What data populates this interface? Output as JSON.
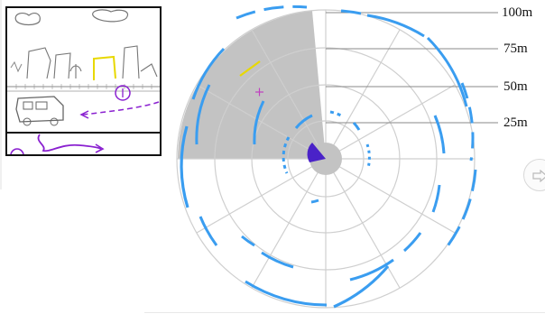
{
  "radar": {
    "distance_labels": [
      "100m",
      "75m",
      "50m",
      "25m"
    ],
    "colors": {
      "arc": "#3a9df0",
      "sector": "#c3c3c3",
      "heading": "#4a22c8",
      "grid": "#cfcfcf",
      "yellow_mark": "#e8d800",
      "magenta_mark": "#c040c0"
    }
  },
  "sketch": {
    "colors": {
      "ink": "#555555",
      "purple": "#8a20d0",
      "yellow": "#e8d800"
    }
  },
  "next_button": {
    "icon": "arrow-right-icon"
  }
}
